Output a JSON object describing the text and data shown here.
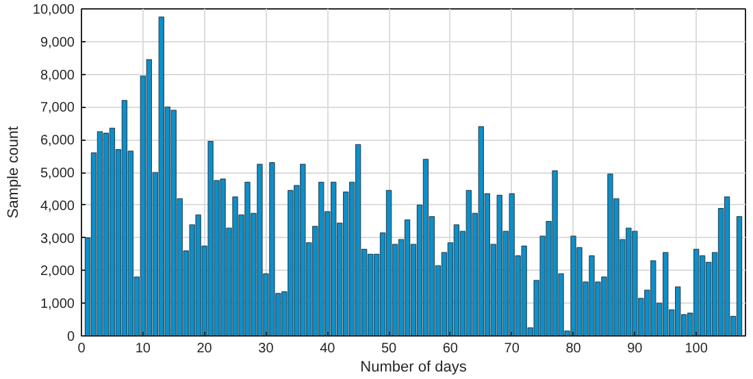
{
  "chart_data": {
    "type": "bar",
    "xlabel": "Number of days",
    "ylabel": "Sample count",
    "x": [
      1,
      2,
      3,
      4,
      5,
      6,
      7,
      8,
      9,
      10,
      11,
      12,
      13,
      14,
      15,
      16,
      17,
      18,
      19,
      20,
      21,
      22,
      23,
      24,
      25,
      26,
      27,
      28,
      29,
      30,
      31,
      32,
      33,
      34,
      35,
      36,
      37,
      38,
      39,
      40,
      41,
      42,
      43,
      44,
      45,
      46,
      47,
      48,
      49,
      50,
      51,
      52,
      53,
      54,
      55,
      56,
      57,
      58,
      59,
      60,
      61,
      62,
      63,
      64,
      65,
      66,
      67,
      68,
      69,
      70,
      71,
      72,
      73,
      74,
      75,
      76,
      77,
      78,
      79,
      80,
      81,
      82,
      83,
      84,
      85,
      86,
      87,
      88,
      89,
      90,
      91,
      92,
      93,
      94,
      95,
      96,
      97,
      98,
      99,
      100,
      101,
      102,
      103,
      104,
      105,
      106,
      107
    ],
    "values": [
      3000,
      5600,
      6250,
      6200,
      6350,
      5700,
      7200,
      5650,
      1800,
      7950,
      8450,
      5000,
      9750,
      7000,
      6900,
      4200,
      2600,
      3400,
      3700,
      2750,
      5950,
      4750,
      4800,
      3300,
      4250,
      3700,
      4700,
      3750,
      5250,
      1900,
      5300,
      1300,
      1350,
      4450,
      4600,
      5250,
      2850,
      3350,
      4700,
      3800,
      4700,
      3450,
      4400,
      4700,
      5850,
      2650,
      2500,
      2500,
      3150,
      4450,
      2800,
      2950,
      3550,
      2800,
      4000,
      5400,
      3650,
      2150,
      2550,
      2850,
      3400,
      3200,
      4450,
      3750,
      6400,
      4350,
      2800,
      4300,
      3200,
      4350,
      2450,
      2750,
      250,
      1700,
      3050,
      3500,
      5050,
      1900,
      150,
      3050,
      2700,
      1650,
      2450,
      1650,
      1800,
      4950,
      4200,
      2950,
      3300,
      3200,
      1150,
      1400,
      2300,
      1000,
      2550,
      800,
      1500,
      650,
      700,
      2650,
      2450,
      2250,
      2550,
      3900,
      4250,
      600,
      3650
    ],
    "color": "#0d8fc9",
    "xlim": [
      0,
      108
    ],
    "ylim": [
      0,
      10000
    ],
    "xticks": [
      0,
      10,
      20,
      30,
      40,
      50,
      60,
      70,
      80,
      90,
      100
    ],
    "yticks": [
      {
        "value": 0,
        "label": "0"
      },
      {
        "value": 1000,
        "label": "1,000"
      },
      {
        "value": 2000,
        "label": "2,000"
      },
      {
        "value": 3000,
        "label": "3,000"
      },
      {
        "value": 4000,
        "label": "4,000"
      },
      {
        "value": 5000,
        "label": "5,000"
      },
      {
        "value": 6000,
        "label": "6,000"
      },
      {
        "value": 7000,
        "label": "7,000"
      },
      {
        "value": 8000,
        "label": "8,000"
      },
      {
        "value": 9000,
        "label": "9,000"
      },
      {
        "value": 10000,
        "label": "10,000"
      }
    ],
    "grid": true
  }
}
